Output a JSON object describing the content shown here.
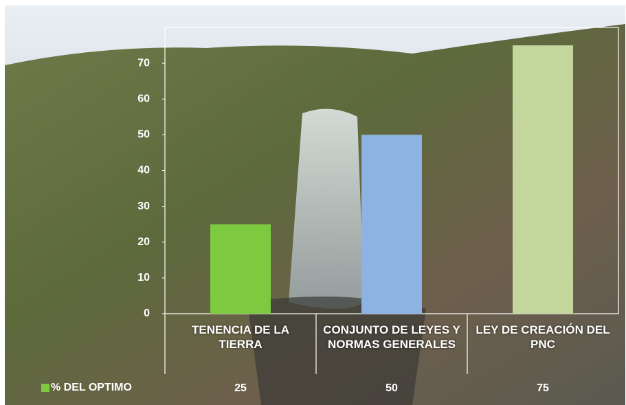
{
  "chart_data": {
    "type": "bar",
    "categories": [
      "TENENCIA DE LA TIERRA",
      "CONJUNTO DE LEYES Y NORMAS GENERALES",
      "LEY DE CREACIÓN DEL PNC"
    ],
    "series": [
      {
        "name": "% DEL OPTIMO",
        "color": "#7dc940",
        "colors": [
          "#7dc940",
          "#8db3e2",
          "#c3d69b"
        ],
        "values": [
          25,
          50,
          75
        ]
      }
    ],
    "ylim": [
      0,
      80
    ],
    "yticks": [
      0,
      10,
      20,
      30,
      40,
      50,
      60,
      70
    ],
    "grid": false,
    "data_table": true
  }
}
